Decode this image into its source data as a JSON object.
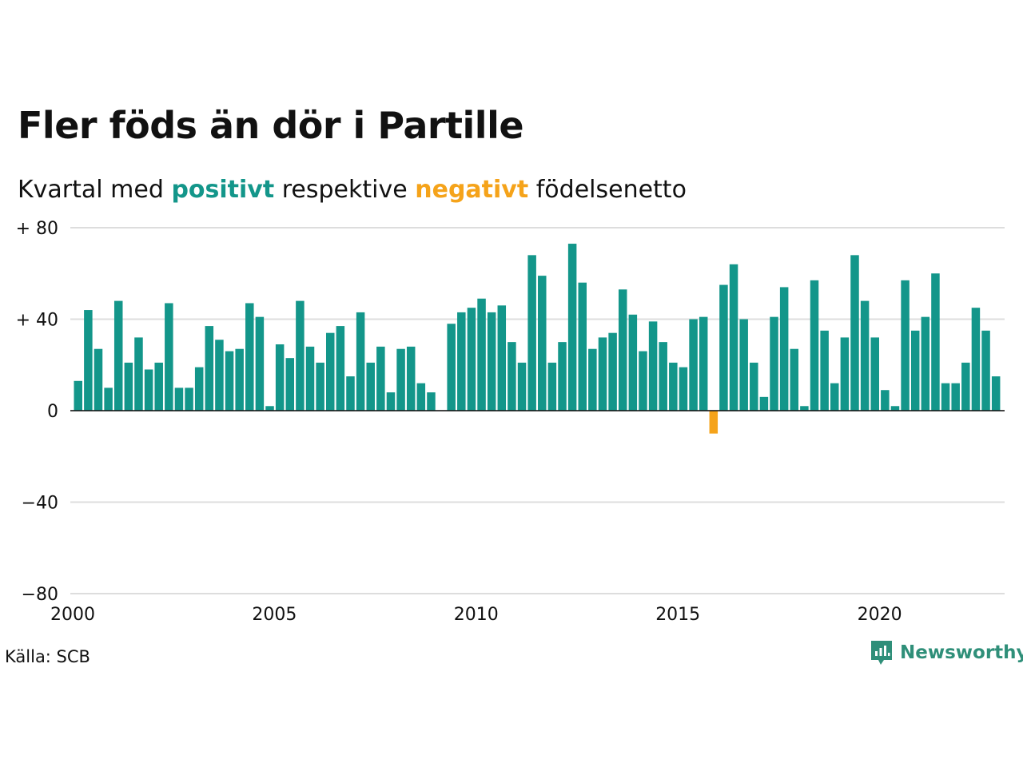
{
  "header": {
    "title": "Fler föds än dör i Partille",
    "subtitle_prefix": "Kvartal med",
    "subtitle_positive": "positivt",
    "subtitle_middle": "respektive",
    "subtitle_negative": "negativt",
    "subtitle_suffix": "födelsenetto"
  },
  "footer": {
    "source": "Källa: SCB",
    "brand": "Newsworthy",
    "brand_icon": "newsworthy-logo-icon"
  },
  "colors": {
    "positive": "#13968a",
    "negative": "#f5a31a",
    "grid": "#dddddd",
    "brand": "#2f8f79"
  },
  "chart_data": {
    "type": "bar",
    "title": "Fler föds än dör i Partille",
    "subtitle": "Kvartal med positivt respektive negativt födelsenetto",
    "x_start": "2000 Q1",
    "x_ticks": [
      "2000",
      "2005",
      "2010",
      "2015",
      "2020"
    ],
    "y_ticks": [
      {
        "value": 80,
        "label": "+ 80"
      },
      {
        "value": 40,
        "label": "+ 40"
      },
      {
        "value": 0,
        "label": "0"
      },
      {
        "value": -40,
        "label": "−40"
      },
      {
        "value": -80,
        "label": "−80"
      }
    ],
    "ylim": [
      -80,
      80
    ],
    "grid": true,
    "values": [
      13,
      44,
      27,
      10,
      48,
      21,
      32,
      18,
      21,
      47,
      10,
      10,
      19,
      37,
      31,
      26,
      27,
      47,
      41,
      2,
      29,
      23,
      48,
      28,
      21,
      34,
      37,
      15,
      43,
      21,
      28,
      8,
      27,
      28,
      12,
      8,
      null,
      38,
      43,
      45,
      49,
      43,
      46,
      30,
      21,
      68,
      59,
      21,
      30,
      73,
      56,
      27,
      32,
      34,
      53,
      42,
      26,
      39,
      30,
      21,
      19,
      40,
      41,
      -10,
      55,
      64,
      40,
      21,
      6,
      41,
      54,
      27,
      2,
      57,
      35,
      12,
      32,
      68,
      48,
      32,
      9,
      2,
      57,
      35,
      41,
      60,
      12,
      12,
      21,
      45,
      35,
      15
    ]
  }
}
